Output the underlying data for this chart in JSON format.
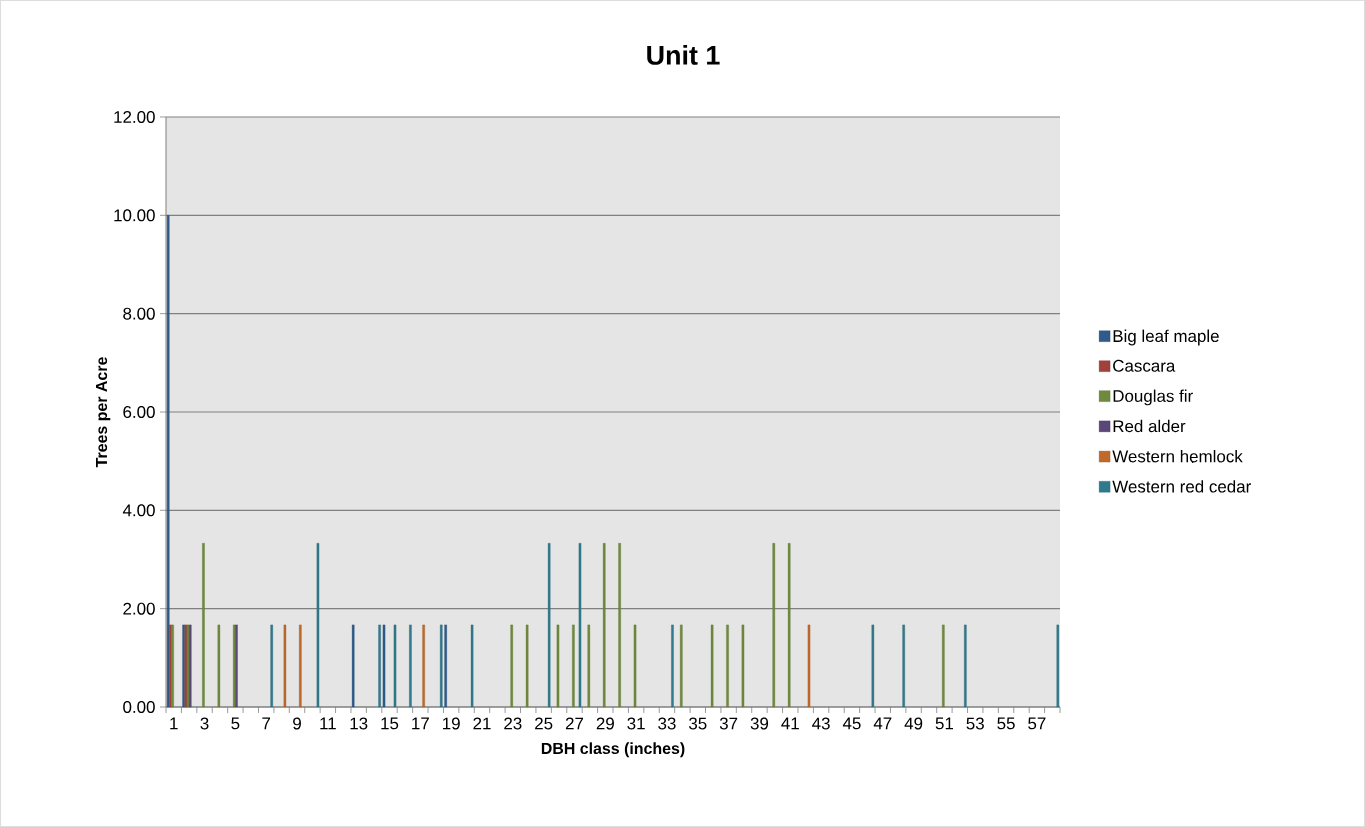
{
  "chart_data": {
    "type": "bar",
    "title": "Unit 1",
    "xlabel": "DBH class (inches)",
    "ylabel": "Trees per Acre",
    "categories": [
      "1",
      null,
      "3",
      null,
      "5",
      null,
      "7",
      null,
      "9",
      null,
      "11",
      null,
      "13",
      null,
      "15",
      null,
      "17",
      null,
      "19",
      null,
      "21",
      null,
      "23",
      null,
      "25",
      null,
      "27",
      null,
      "29",
      null,
      "31",
      null,
      "33",
      null,
      "35",
      null,
      "37",
      null,
      "39",
      null,
      "41",
      null,
      "43",
      null,
      "45",
      null,
      "47",
      null,
      "49",
      null,
      "51",
      null,
      "53",
      null,
      "55",
      null,
      "57",
      null
    ],
    "series": [
      {
        "name": "Big leaf maple",
        "color": "#2e5b8c",
        "values": [
          10,
          1.67,
          null,
          null,
          null,
          null,
          null,
          null,
          null,
          null,
          null,
          null,
          1.67,
          null,
          1.67,
          null,
          null,
          null,
          1.67,
          null,
          null,
          null,
          null,
          null,
          null,
          null,
          null,
          null,
          null,
          null,
          null,
          null,
          null,
          null,
          null,
          null,
          null,
          null,
          null,
          null,
          null,
          null,
          null,
          null,
          null,
          null,
          null,
          null,
          null,
          null,
          null,
          null,
          null,
          null,
          null,
          null,
          null,
          null
        ]
      },
      {
        "name": "Cascara",
        "color": "#a0413c",
        "values": [
          1.67,
          1.67,
          null,
          null,
          null,
          null,
          null,
          null,
          null,
          null,
          null,
          null,
          null,
          null,
          null,
          null,
          null,
          null,
          null,
          null,
          null,
          null,
          null,
          null,
          null,
          null,
          null,
          null,
          null,
          null,
          null,
          null,
          null,
          null,
          null,
          null,
          null,
          null,
          null,
          null,
          null,
          null,
          null,
          null,
          null,
          null,
          null,
          null,
          null,
          null,
          null,
          null,
          null,
          null,
          null,
          null,
          null,
          null
        ]
      },
      {
        "name": "Douglas fir",
        "color": "#6f8a3a",
        "values": [
          1.67,
          1.67,
          3.33,
          1.67,
          1.67,
          null,
          null,
          null,
          null,
          null,
          null,
          null,
          null,
          null,
          null,
          null,
          null,
          null,
          null,
          null,
          null,
          null,
          1.67,
          1.67,
          null,
          1.67,
          1.67,
          1.67,
          3.33,
          3.33,
          1.67,
          null,
          null,
          1.67,
          null,
          1.67,
          1.67,
          1.67,
          null,
          3.33,
          3.33,
          null,
          null,
          null,
          null,
          null,
          null,
          null,
          null,
          null,
          1.67,
          null,
          null,
          null,
          null,
          null,
          null,
          null
        ]
      },
      {
        "name": "Red alder",
        "color": "#5b4678",
        "values": [
          null,
          1.67,
          null,
          null,
          1.67,
          null,
          null,
          null,
          null,
          null,
          null,
          null,
          null,
          null,
          null,
          null,
          null,
          null,
          null,
          null,
          null,
          null,
          null,
          null,
          null,
          null,
          null,
          null,
          null,
          null,
          null,
          null,
          null,
          null,
          null,
          null,
          null,
          null,
          null,
          null,
          null,
          null,
          null,
          null,
          null,
          null,
          null,
          null,
          null,
          null,
          null,
          null,
          null,
          null,
          null,
          null,
          null,
          null
        ]
      },
      {
        "name": "Western hemlock",
        "color": "#c0692a",
        "values": [
          null,
          null,
          null,
          null,
          null,
          null,
          null,
          1.67,
          1.67,
          null,
          null,
          null,
          null,
          null,
          null,
          null,
          1.67,
          null,
          null,
          null,
          null,
          null,
          null,
          null,
          null,
          null,
          null,
          null,
          null,
          null,
          null,
          null,
          null,
          null,
          null,
          null,
          null,
          null,
          null,
          null,
          null,
          1.67,
          null,
          null,
          null,
          null,
          null,
          null,
          null,
          null,
          null,
          null,
          null,
          null,
          null,
          null,
          null,
          null
        ]
      },
      {
        "name": "Western red cedar",
        "color": "#2f7a8c",
        "values": [
          null,
          null,
          null,
          null,
          null,
          null,
          1.67,
          null,
          null,
          3.33,
          null,
          null,
          null,
          1.67,
          1.67,
          1.67,
          null,
          1.67,
          null,
          1.67,
          null,
          null,
          null,
          null,
          3.33,
          null,
          3.33,
          null,
          null,
          null,
          null,
          null,
          1.67,
          null,
          null,
          null,
          null,
          null,
          null,
          null,
          null,
          null,
          null,
          null,
          null,
          1.67,
          null,
          1.67,
          null,
          null,
          null,
          1.67,
          null,
          null,
          null,
          null,
          null,
          1.67
        ]
      }
    ],
    "ylim": [
      0,
      12
    ],
    "yticks": [
      {
        "value": 0,
        "label": "0.00"
      },
      {
        "value": 2,
        "label": "2.00"
      },
      {
        "value": 4,
        "label": "4.00"
      },
      {
        "value": 6,
        "label": "6.00"
      },
      {
        "value": 8,
        "label": "8.00"
      },
      {
        "value": 10,
        "label": "10.00"
      },
      {
        "value": 12,
        "label": "12.00"
      }
    ],
    "grid": "y",
    "legend": "right"
  }
}
